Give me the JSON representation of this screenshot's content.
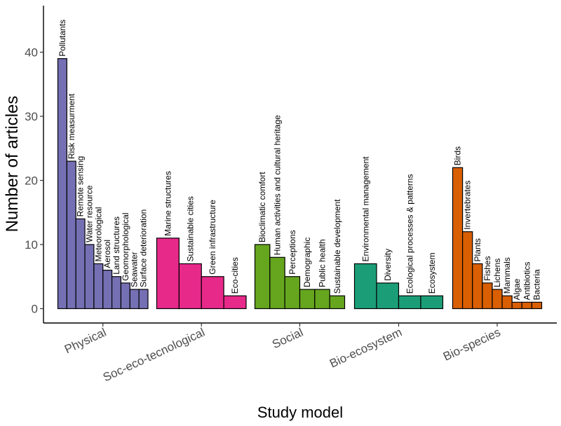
{
  "chart_data": {
    "type": "bar",
    "xlabel": "Study model",
    "ylabel": "Number of articles",
    "ylim": [
      0,
      47
    ],
    "yticks": [
      0,
      10,
      20,
      30,
      40
    ],
    "grid": false,
    "legend": "none",
    "groups": [
      {
        "name": "Physical",
        "color": "#7570b3",
        "bars": [
          {
            "label": "Pollutants",
            "value": 39
          },
          {
            "label": "Risk measurment",
            "value": 23
          },
          {
            "label": "Remote sensing",
            "value": 14
          },
          {
            "label": "Water resource",
            "value": 10
          },
          {
            "label": "Meteorological",
            "value": 7
          },
          {
            "label": "Aerosol",
            "value": 6
          },
          {
            "label": "Land structures",
            "value": 5
          },
          {
            "label": "Geomorphological",
            "value": 4
          },
          {
            "label": "Seawater",
            "value": 3
          },
          {
            "label": "Surface deterioration",
            "value": 3
          }
        ]
      },
      {
        "name": "Soc-eco-tecnological",
        "color": "#e7298a",
        "bars": [
          {
            "label": "Marine structures",
            "value": 11
          },
          {
            "label": "Sustainable cities",
            "value": 7
          },
          {
            "label": "Green infrastructure",
            "value": 5
          },
          {
            "label": "Eco-cities",
            "value": 2
          }
        ]
      },
      {
        "name": "Social",
        "color": "#66a61e",
        "bars": [
          {
            "label": "Bioclimatic comfort",
            "value": 10
          },
          {
            "label": "Human activities and cultural heritage",
            "value": 8
          },
          {
            "label": "Perceptions",
            "value": 5
          },
          {
            "label": "Demographic",
            "value": 3
          },
          {
            "label": "Public health",
            "value": 3
          },
          {
            "label": "Sustainable development",
            "value": 2
          }
        ]
      },
      {
        "name": "Bio-ecosystem",
        "color": "#1b9e77",
        "bars": [
          {
            "label": "Environmental management",
            "value": 7
          },
          {
            "label": "Diversity",
            "value": 4
          },
          {
            "label": "Ecological processes & patterns",
            "value": 2
          },
          {
            "label": "Ecosystem",
            "value": 2
          }
        ]
      },
      {
        "name": "Bio-species",
        "color": "#d95f02",
        "bars": [
          {
            "label": "Birds",
            "value": 22
          },
          {
            "label": "Invertebrates",
            "value": 12
          },
          {
            "label": "Plants",
            "value": 7
          },
          {
            "label": "Fishes",
            "value": 4
          },
          {
            "label": "Lichens",
            "value": 3
          },
          {
            "label": "Mammals",
            "value": 2
          },
          {
            "label": "Algae",
            "value": 1
          },
          {
            "label": "Antibiotics",
            "value": 1
          },
          {
            "label": "Bacteria",
            "value": 1
          }
        ]
      }
    ]
  }
}
